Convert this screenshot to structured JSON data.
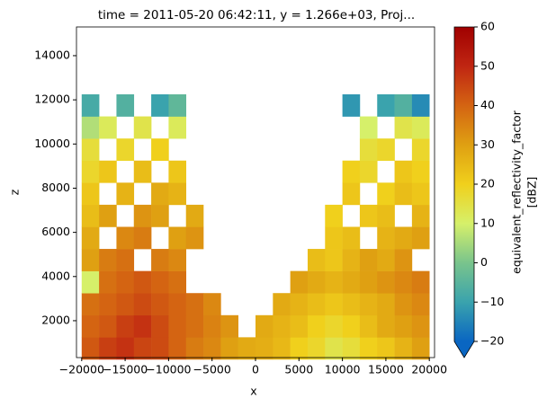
{
  "chart_data": {
    "type": "heatmap",
    "title": "time = 2011-05-20 06:42:11, y = 1.266e+03, Proj...",
    "x_label": "x",
    "y_label": "z",
    "colorbar_label": [
      "equivalent_reflectivity_factor",
      "[dBZ]"
    ],
    "x": [
      -19000,
      -17000,
      -15000,
      -13000,
      -11000,
      -9000,
      -7000,
      -5000,
      -3000,
      -1000,
      1000,
      3000,
      5000,
      7000,
      9000,
      11000,
      13000,
      15000,
      17000,
      19000
    ],
    "y": [
      750,
      1750,
      2750,
      3750,
      4750,
      5750,
      6750,
      7750,
      8750,
      9750,
      10750,
      11750
    ],
    "values": [
      [
        42,
        46,
        48,
        45,
        44,
        40,
        36,
        34,
        30,
        28,
        27,
        25,
        20,
        18,
        14,
        16,
        20,
        22,
        26,
        30
      ],
      [
        40,
        42,
        46,
        48,
        44,
        40,
        38,
        35,
        32,
        null,
        28,
        26,
        24,
        20,
        18,
        20,
        24,
        28,
        30,
        32
      ],
      [
        38,
        40,
        42,
        44,
        42,
        40,
        38,
        34,
        null,
        null,
        null,
        28,
        26,
        24,
        22,
        24,
        26,
        28,
        32,
        34
      ],
      [
        10,
        38,
        40,
        42,
        40,
        38,
        null,
        null,
        null,
        null,
        null,
        null,
        30,
        28,
        26,
        28,
        30,
        32,
        34,
        36
      ],
      [
        30,
        36,
        38,
        null,
        36,
        34,
        null,
        null,
        null,
        null,
        null,
        null,
        null,
        24,
        22,
        26,
        30,
        28,
        32,
        null
      ],
      [
        28,
        null,
        34,
        36,
        null,
        30,
        32,
        null,
        null,
        null,
        null,
        null,
        null,
        null,
        22,
        24,
        null,
        26,
        28,
        30
      ],
      [
        24,
        30,
        null,
        32,
        30,
        null,
        28,
        null,
        null,
        null,
        null,
        null,
        null,
        null,
        20,
        null,
        22,
        24,
        null,
        26
      ],
      [
        22,
        null,
        26,
        null,
        28,
        26,
        null,
        null,
        null,
        null,
        null,
        null,
        null,
        null,
        null,
        22,
        null,
        20,
        24,
        22
      ],
      [
        18,
        22,
        null,
        24,
        null,
        22,
        null,
        null,
        null,
        null,
        null,
        null,
        null,
        null,
        null,
        20,
        18,
        null,
        22,
        20
      ],
      [
        16,
        null,
        18,
        null,
        20,
        null,
        null,
        null,
        null,
        null,
        null,
        null,
        null,
        null,
        null,
        null,
        16,
        18,
        null,
        18
      ],
      [
        6,
        12,
        null,
        14,
        null,
        12,
        null,
        null,
        null,
        null,
        null,
        null,
        null,
        null,
        null,
        null,
        10,
        null,
        14,
        12
      ],
      [
        -8,
        null,
        -6,
        null,
        -10,
        -4,
        null,
        null,
        null,
        null,
        null,
        null,
        null,
        null,
        null,
        -12,
        null,
        -10,
        -6,
        -14
      ]
    ],
    "xlim": [
      -20600,
      20600
    ],
    "ylim": [
      330,
      15300
    ],
    "xticks": [
      {
        "value": -20000,
        "label": "−20000"
      },
      {
        "value": -15000,
        "label": "−15000"
      },
      {
        "value": -10000,
        "label": "−10000"
      },
      {
        "value": -5000,
        "label": "−5000"
      },
      0,
      5000,
      10000,
      15000,
      20000
    ],
    "yticks": [
      2000,
      4000,
      6000,
      8000,
      10000,
      12000,
      14000
    ],
    "clim": [
      -20,
      60
    ],
    "cticks": [
      {
        "value": -20,
        "label": "−20"
      },
      {
        "value": -10,
        "label": "−10"
      },
      0,
      10,
      20,
      30,
      40,
      50,
      60
    ],
    "colormap": [
      "#0a66c2",
      "#3aa3ad",
      "#79c48c",
      "#d6f06a",
      "#f0d01c",
      "#dfa012",
      "#d46412",
      "#c02612",
      "#a00000"
    ]
  }
}
